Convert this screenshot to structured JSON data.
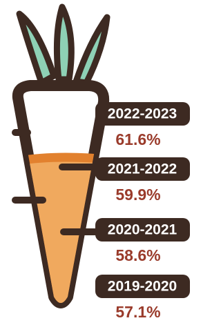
{
  "items": [
    {
      "period": "2022-2023",
      "value": "61.6%"
    },
    {
      "period": "2021-2022",
      "value": "59.9%"
    },
    {
      "period": "2020-2021",
      "value": "58.6%"
    },
    {
      "period": "2019-2020",
      "value": "57.1%"
    }
  ]
}
